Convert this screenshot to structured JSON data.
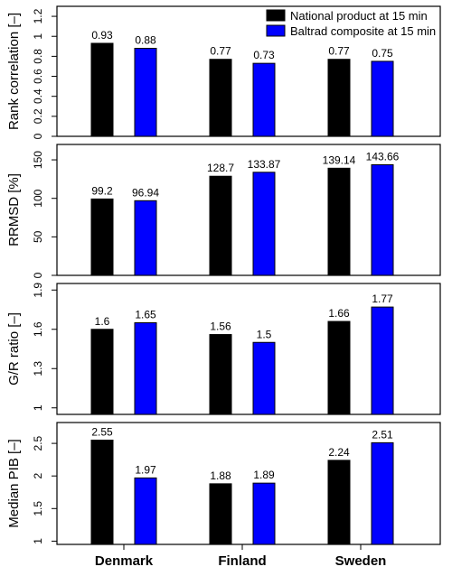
{
  "legend": {
    "placement": "top-right",
    "entries": [
      {
        "label": "National product at 15 min",
        "color": "#000000"
      },
      {
        "label": "Baltrad composite at 15 min",
        "color": "#0000ff"
      }
    ]
  },
  "categories": [
    "Denmark",
    "Finland",
    "Sweden"
  ],
  "chart_data": [
    {
      "type": "bar",
      "ylabel": "Rank correlation [–]",
      "ylim": [
        0,
        1.3
      ],
      "yticks": [
        0,
        0.2,
        0.4,
        0.6,
        0.8,
        1.0,
        1.2
      ],
      "ytick_labels": [
        "0",
        "0.2",
        "0.4",
        "0.6",
        "0.8",
        "1",
        "1.2"
      ],
      "categories": [
        "Denmark",
        "Finland",
        "Sweden"
      ],
      "series": [
        {
          "name": "National product at 15 min",
          "color": "#000000",
          "values": [
            0.93,
            0.77,
            0.77
          ],
          "labels": [
            "0.93",
            "0.77",
            "0.77"
          ]
        },
        {
          "name": "Baltrad composite at 15 min",
          "color": "#0000ff",
          "values": [
            0.88,
            0.73,
            0.75
          ],
          "labels": [
            "0.88",
            "0.73",
            "0.75"
          ]
        }
      ]
    },
    {
      "type": "bar",
      "ylabel": "RRMSD [%]",
      "ylim": [
        0,
        170
      ],
      "yticks": [
        0,
        50,
        100,
        150
      ],
      "ytick_labels": [
        "0",
        "50",
        "100",
        "150"
      ],
      "categories": [
        "Denmark",
        "Finland",
        "Sweden"
      ],
      "series": [
        {
          "name": "National product at 15 min",
          "color": "#000000",
          "values": [
            99.2,
            128.7,
            139.14
          ],
          "labels": [
            "99.2",
            "128.7",
            "139.14"
          ]
        },
        {
          "name": "Baltrad composite at 15 min",
          "color": "#0000ff",
          "values": [
            96.94,
            133.87,
            143.66
          ],
          "labels": [
            "96.94",
            "133.87",
            "143.66"
          ]
        }
      ]
    },
    {
      "type": "bar",
      "ylabel": "G/R ratio [–]",
      "ylim": [
        0.95,
        1.95
      ],
      "yticks": [
        1.0,
        1.3,
        1.6,
        1.9
      ],
      "ytick_labels": [
        "1",
        "1.3",
        "1.6",
        "1.9"
      ],
      "categories": [
        "Denmark",
        "Finland",
        "Sweden"
      ],
      "series": [
        {
          "name": "National product at 15 min",
          "color": "#000000",
          "values": [
            1.6,
            1.56,
            1.66
          ],
          "labels": [
            "1.6",
            "1.56",
            "1.66"
          ]
        },
        {
          "name": "Baltrad composite at 15 min",
          "color": "#0000ff",
          "values": [
            1.65,
            1.5,
            1.77
          ],
          "labels": [
            "1.65",
            "1.5",
            "1.77"
          ]
        }
      ]
    },
    {
      "type": "bar",
      "ylabel": "Median PIB [–]",
      "ylim": [
        0.95,
        2.82
      ],
      "yticks": [
        1.0,
        1.5,
        2.0,
        2.5
      ],
      "ytick_labels": [
        "1",
        "1.5",
        "2",
        "2.5"
      ],
      "categories": [
        "Denmark",
        "Finland",
        "Sweden"
      ],
      "series": [
        {
          "name": "National product at 15 min",
          "color": "#000000",
          "values": [
            2.55,
            1.88,
            2.24
          ],
          "labels": [
            "2.55",
            "1.88",
            "2.24"
          ]
        },
        {
          "name": "Baltrad composite at 15 min",
          "color": "#0000ff",
          "values": [
            1.97,
            1.89,
            2.51
          ],
          "labels": [
            "1.97",
            "1.89",
            "2.51"
          ]
        }
      ]
    }
  ]
}
